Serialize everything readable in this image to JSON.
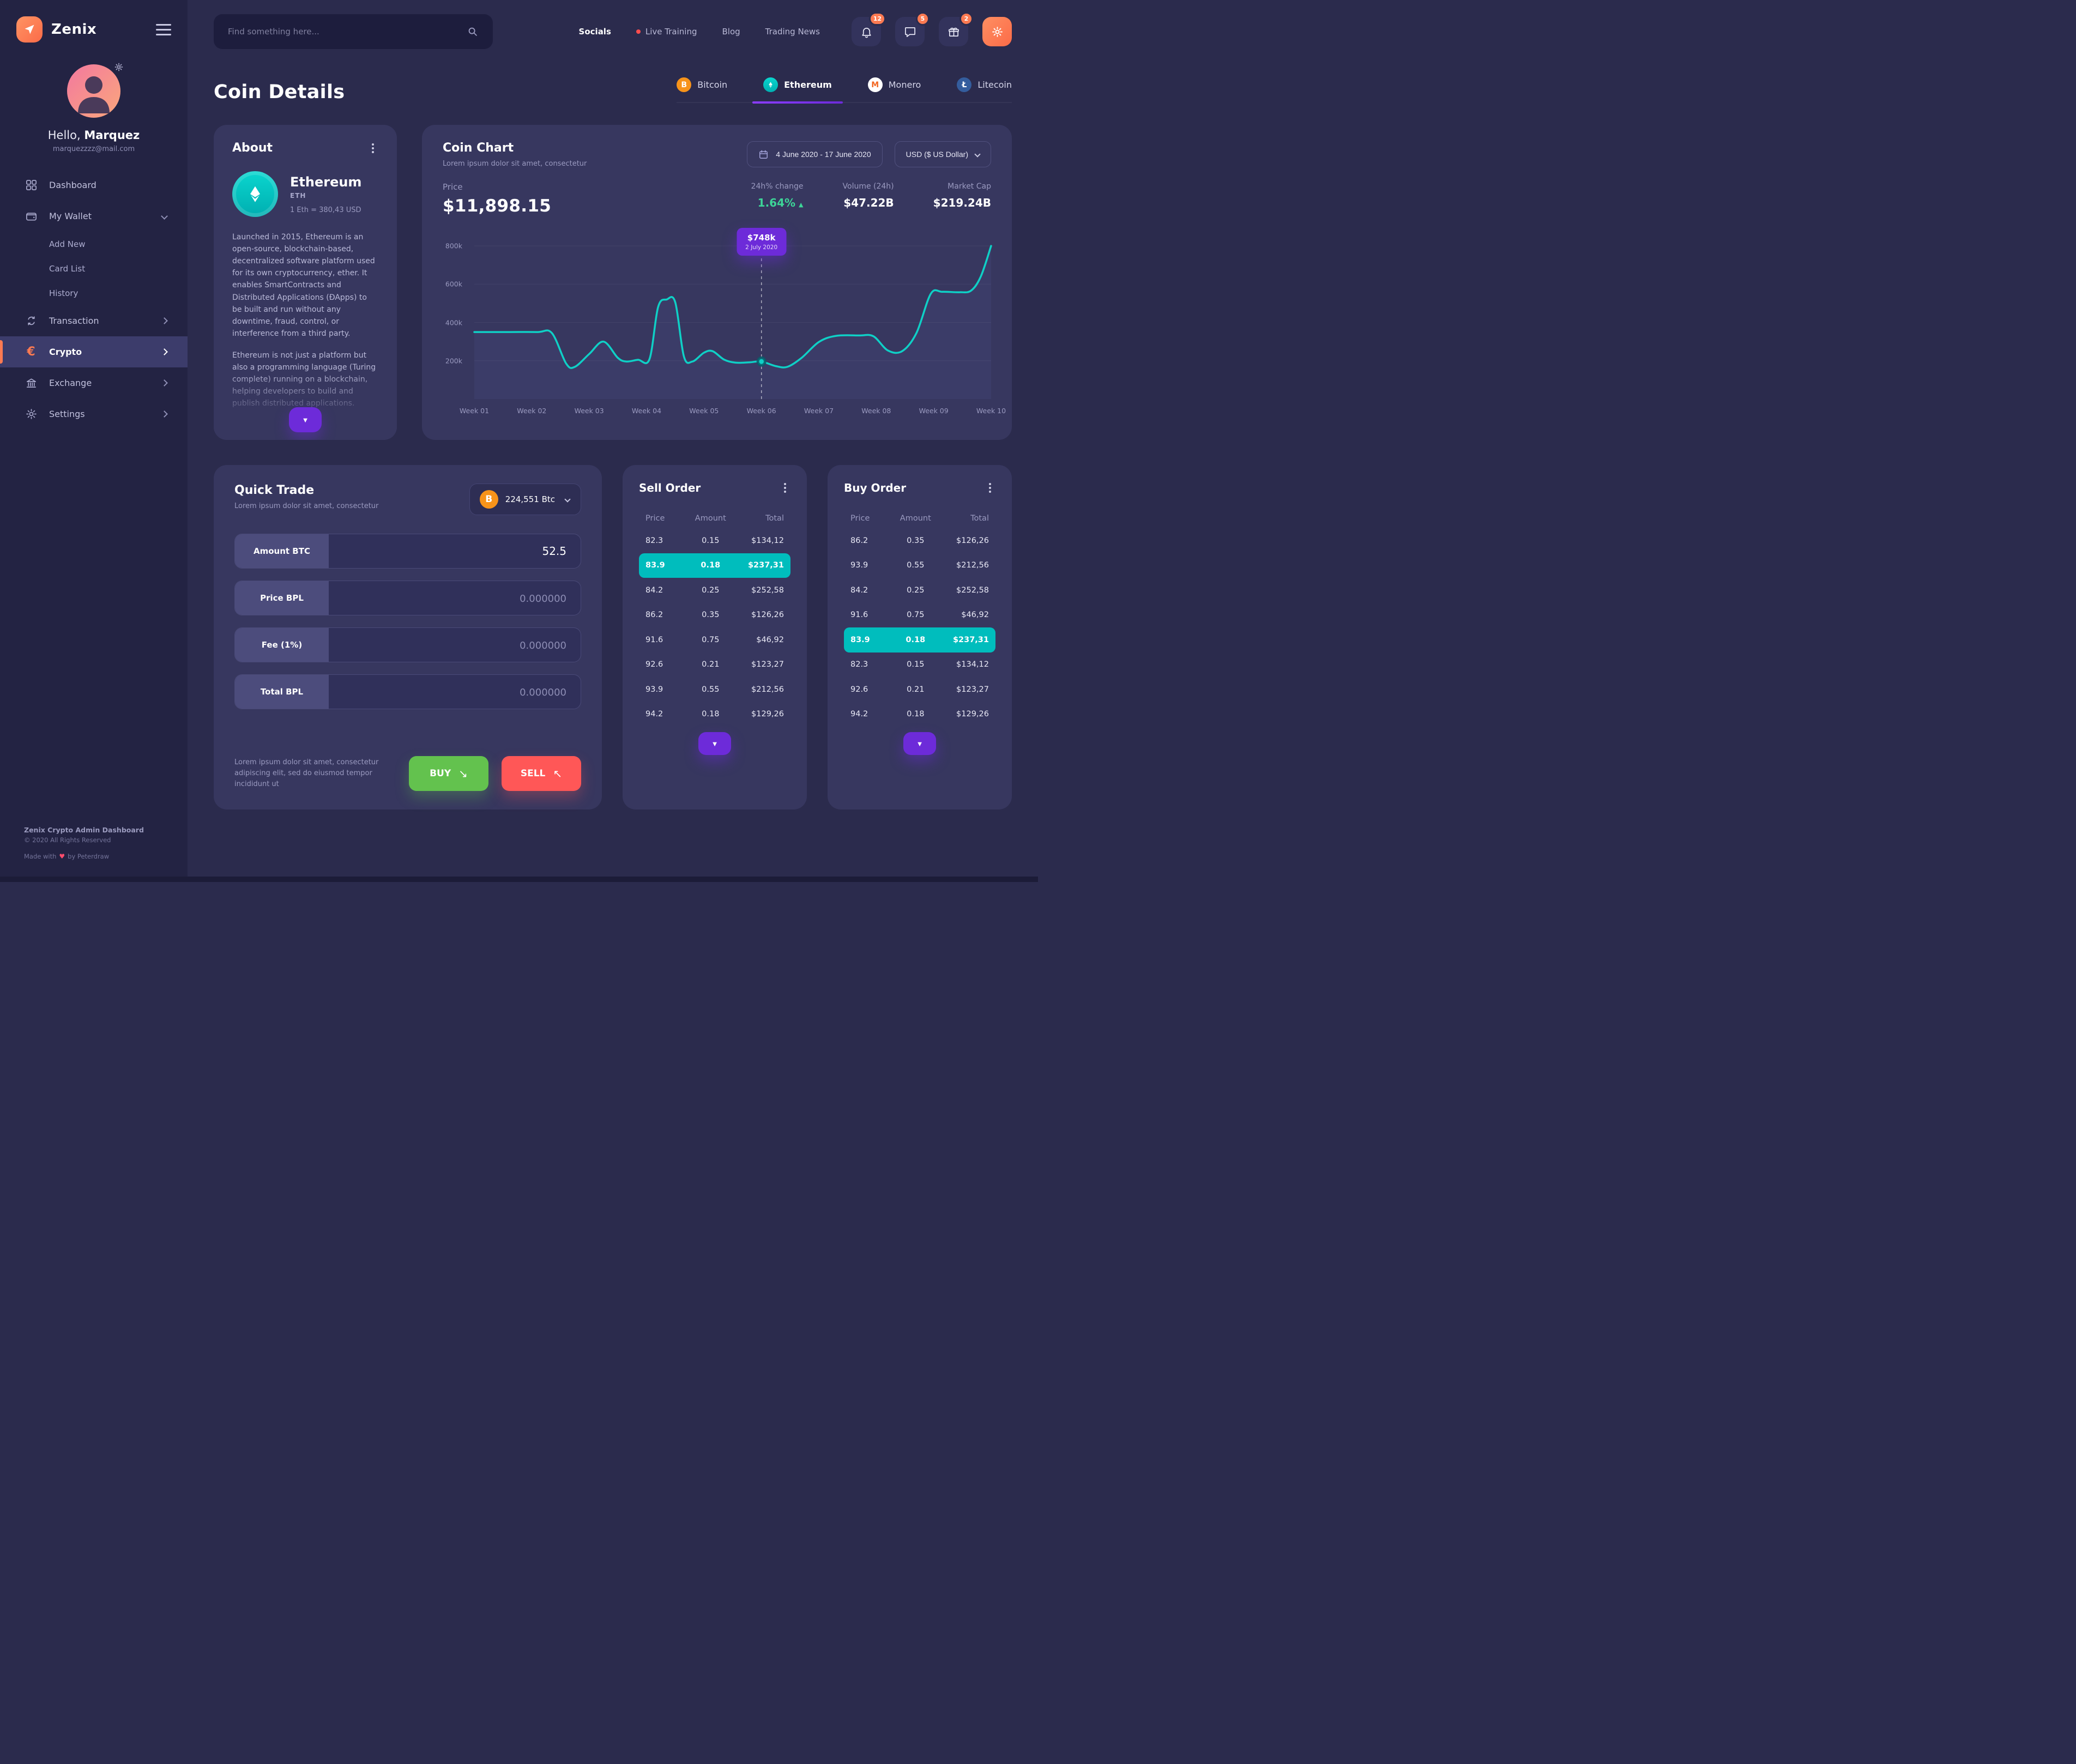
{
  "icons": {
    "triangle_up": "▲",
    "triangle_down": "▼",
    "buy_arrow": "↘",
    "sell_arrow": "↖",
    "heart": "♥",
    "euro": "€",
    "btc_letter": "B"
  },
  "sidebar": {
    "brand": "Zenix",
    "greeting_prefix": "Hello, ",
    "user_name": "Marquez",
    "email": "marquezzzz@mail.com",
    "items": [
      {
        "label": "Dashboard"
      },
      {
        "label": "My Wallet",
        "children": [
          "Add New",
          "Card List",
          "History"
        ]
      },
      {
        "label": "Transaction"
      },
      {
        "label": "Crypto"
      },
      {
        "label": "Exchange"
      },
      {
        "label": "Settings"
      }
    ],
    "footer_title": "Zenix Crypto Admin Dashboard",
    "footer_copyright": "© 2020 All Rights Reserved",
    "made_with_prefix": "Made with",
    "made_with_suffix": "by Peterdraw"
  },
  "topbar": {
    "search_placeholder": "Find something here...",
    "nav": [
      {
        "label": "Socials"
      },
      {
        "label": "Live Training"
      },
      {
        "label": "Blog"
      },
      {
        "label": "Trading News"
      }
    ],
    "notification_count": "12",
    "message_count": "5",
    "gift_count": "2"
  },
  "page": {
    "title": "Coin Details"
  },
  "coin_tabs": [
    {
      "label": "Bitcoin",
      "symbol": "B"
    },
    {
      "label": "Ethereum"
    },
    {
      "label": "Monero",
      "symbol": "M"
    },
    {
      "label": "Litecoin",
      "symbol": "Ł"
    }
  ],
  "about": {
    "title": "About",
    "coin_name": "Ethereum",
    "coin_symbol": "ETH",
    "rate": "1 Eth = 380,43 USD",
    "paragraph1": "Launched in 2015, Ethereum is an open-source, blockchain-based, decentralized software platform used for its own cryptocurrency, ether. It enables SmartContracts and Distributed Applications (ĐApps) to be built and run without any downtime, fraud, control, or interference from a third party.",
    "paragraph2": "Ethereum is not just a platform but also a programming language (Turing complete) running on a blockchain, helping developers to build and publish distributed applications."
  },
  "coin_chart": {
    "title": "Coin Chart",
    "subtitle": "Lorem ipsum dolor sit amet, consectetur",
    "date_range": "4 June 2020 - 17 June 2020",
    "currency": "USD ($ US Dollar)",
    "price_label": "Price",
    "price_value": "$11,898.15",
    "stats": [
      {
        "label": "24h% change",
        "value": "1.64%",
        "trend": "up"
      },
      {
        "label": "Volume (24h)",
        "value": "$47.22B"
      },
      {
        "label": "Market Cap",
        "value": "$219.24B"
      }
    ],
    "tooltip": {
      "value": "$748k",
      "date": "2 July 2020"
    },
    "chart_data": {
      "type": "line",
      "series_name": "Price",
      "x_labels": [
        "Week 01",
        "Week 02",
        "Week 03",
        "Week 04",
        "Week 05",
        "Week 06",
        "Week 07",
        "Week 08",
        "Week 09",
        "Week 10"
      ],
      "y_ticks": [
        {
          "value": 800,
          "label": "800k"
        },
        {
          "value": 600,
          "label": "600k"
        },
        {
          "value": 400,
          "label": "400k"
        },
        {
          "value": 200,
          "label": "200k"
        }
      ],
      "xlim": [
        1,
        10
      ],
      "ylim": [
        0,
        860
      ],
      "unit": "thousand USD",
      "grid": true,
      "marker": {
        "x": 6,
        "y": 196
      },
      "points": [
        [
          1,
          350
        ],
        [
          1.6,
          350
        ],
        [
          2.1,
          350
        ],
        [
          2.35,
          345
        ],
        [
          2.6,
          185
        ],
        [
          2.75,
          168
        ],
        [
          3.0,
          235
        ],
        [
          3.25,
          300
        ],
        [
          3.5,
          215
        ],
        [
          3.65,
          196
        ],
        [
          3.85,
          205
        ],
        [
          4.05,
          208
        ],
        [
          4.2,
          480
        ],
        [
          4.35,
          520
        ],
        [
          4.5,
          505
        ],
        [
          4.65,
          222
        ],
        [
          4.8,
          196
        ],
        [
          5.0,
          242
        ],
        [
          5.15,
          250
        ],
        [
          5.35,
          206
        ],
        [
          5.55,
          190
        ],
        [
          5.8,
          192
        ],
        [
          6.0,
          196
        ],
        [
          6.25,
          172
        ],
        [
          6.45,
          168
        ],
        [
          6.7,
          215
        ],
        [
          7.0,
          298
        ],
        [
          7.3,
          330
        ],
        [
          7.7,
          332
        ],
        [
          7.95,
          328
        ],
        [
          8.2,
          254
        ],
        [
          8.45,
          250
        ],
        [
          8.7,
          345
        ],
        [
          8.95,
          550
        ],
        [
          9.15,
          560
        ],
        [
          9.45,
          558
        ],
        [
          9.65,
          566
        ],
        [
          9.82,
          640
        ],
        [
          10,
          800
        ]
      ]
    }
  },
  "quick_trade": {
    "title": "Quick Trade",
    "subtitle": "Lorem ipsum dolor sit amet, consectetur",
    "coin_select": "224,551 Btc",
    "fields": [
      {
        "label": "Amount BTC",
        "value": "52.5",
        "placeholder": ""
      },
      {
        "label": "Price BPL",
        "value": "",
        "placeholder": "0.000000"
      },
      {
        "label": "Fee (1%)",
        "value": "",
        "placeholder": "0.000000"
      },
      {
        "label": "Total BPL",
        "value": "",
        "placeholder": "0.000000"
      }
    ],
    "note": "Lorem ipsum dolor sit amet, consectetur adipiscing elit, sed do eiusmod tempor incididunt ut",
    "buy_label": "BUY",
    "sell_label": "SELL"
  },
  "sell_order": {
    "title": "Sell Order",
    "headers": [
      "Price",
      "Amount",
      "Total"
    ],
    "rows": [
      {
        "price": "82.3",
        "amount": "0.15",
        "total": "$134,12"
      },
      {
        "price": "83.9",
        "amount": "0.18",
        "total": "$237,31",
        "highlight": true
      },
      {
        "price": "84.2",
        "amount": "0.25",
        "total": "$252,58"
      },
      {
        "price": "86.2",
        "amount": "0.35",
        "total": "$126,26"
      },
      {
        "price": "91.6",
        "amount": "0.75",
        "total": "$46,92"
      },
      {
        "price": "92.6",
        "amount": "0.21",
        "total": "$123,27"
      },
      {
        "price": "93.9",
        "amount": "0.55",
        "total": "$212,56"
      },
      {
        "price": "94.2",
        "amount": "0.18",
        "total": "$129,26"
      }
    ]
  },
  "buy_order": {
    "title": "Buy Order",
    "headers": [
      "Price",
      "Amount",
      "Total"
    ],
    "rows": [
      {
        "price": "86.2",
        "amount": "0.35",
        "total": "$126,26"
      },
      {
        "price": "93.9",
        "amount": "0.55",
        "total": "$212,56"
      },
      {
        "price": "84.2",
        "amount": "0.25",
        "total": "$252,58"
      },
      {
        "price": "91.6",
        "amount": "0.75",
        "total": "$46,92"
      },
      {
        "price": "83.9",
        "amount": "0.18",
        "total": "$237,31",
        "highlight": true
      },
      {
        "price": "82.3",
        "amount": "0.15",
        "total": "$134,12"
      },
      {
        "price": "92.6",
        "amount": "0.21",
        "total": "$123,27"
      },
      {
        "price": "94.2",
        "amount": "0.18",
        "total": "$129,26"
      }
    ]
  }
}
